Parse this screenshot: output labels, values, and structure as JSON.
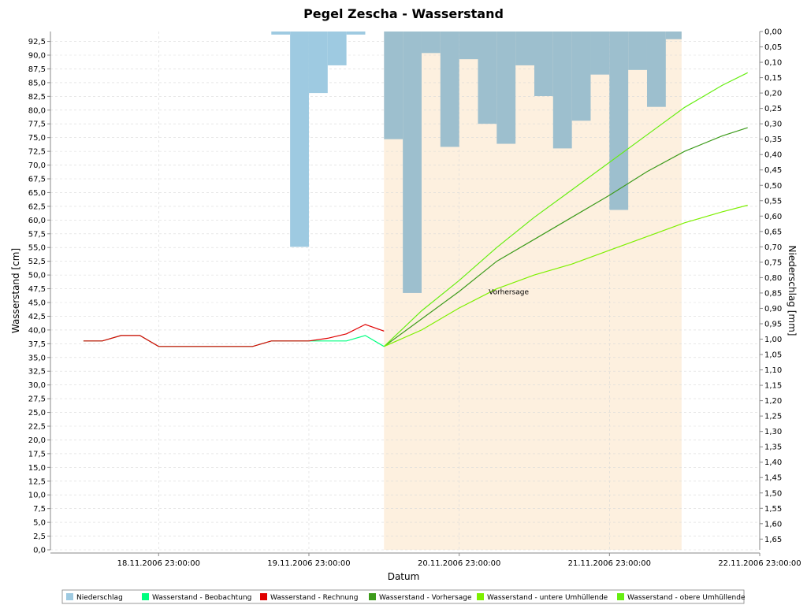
{
  "chart_data": {
    "type": "line",
    "title": "Pegel Zescha - Wasserstand",
    "xlabel": "Datum",
    "ylabel": "Wasserstand [cm]",
    "y2label": "Niederschlag [mm]",
    "xlim": [
      -2.22,
      2.5
    ],
    "x_ticks": [
      {
        "value": -1.5,
        "label": "18.11.2006 23:00:00"
      },
      {
        "value": -0.5,
        "label": "19.11.2006 23:00:00"
      },
      {
        "value": 0.5,
        "label": "20.11.2006 23:00:00"
      },
      {
        "value": 1.5,
        "label": "21.11.2006 23:00:00"
      },
      {
        "value": 2.5,
        "label": "22.11.2006 23:00:00"
      }
    ],
    "ylim": [
      0,
      94.3
    ],
    "y_ticks": [
      "0,0",
      "2,5",
      "5,0",
      "7,5",
      "10,0",
      "12,5",
      "15,0",
      "17,5",
      "20,0",
      "22,5",
      "25,0",
      "27,5",
      "30,0",
      "32,5",
      "35,0",
      "37,5",
      "40,0",
      "42,5",
      "45,0",
      "47,5",
      "50,0",
      "52,5",
      "55,0",
      "57,5",
      "60,0",
      "62,5",
      "65,0",
      "67,5",
      "70,0",
      "72,5",
      "75,0",
      "77,5",
      "80,0",
      "82,5",
      "85,0",
      "87,5",
      "90,0",
      "92,5"
    ],
    "y2lim": [
      0,
      1.685
    ],
    "y2_ticks": [
      "0,00",
      "0,05",
      "0,10",
      "0,15",
      "0,20",
      "0,25",
      "0,30",
      "0,35",
      "0,40",
      "0,45",
      "0,50",
      "0,55",
      "0,60",
      "0,65",
      "0,70",
      "0,75",
      "0,80",
      "0,85",
      "0,90",
      "0,95",
      "1,00",
      "1,05",
      "1,10",
      "1,15",
      "1,20",
      "1,25",
      "1,30",
      "1,35",
      "1,40",
      "1,45",
      "1,50",
      "1,55",
      "1,60",
      "1,65"
    ],
    "forecast_region": {
      "start": 0,
      "end": 1.98,
      "label": "Vorhersage"
    },
    "grid": true,
    "legend_position": "bottom",
    "precipitation": {
      "name": "Niederschlag",
      "color": "#9ecae1",
      "color_in_forecast": "#9dbfce",
      "bars": [
        {
          "start": -0.75,
          "end": -0.625,
          "value": 0.01
        },
        {
          "start": -0.625,
          "end": -0.5,
          "value": 0.7
        },
        {
          "start": -0.5,
          "end": -0.375,
          "value": 0.2
        },
        {
          "start": -0.375,
          "end": -0.25,
          "value": 0.11
        },
        {
          "start": -0.25,
          "end": -0.125,
          "value": 0.01
        },
        {
          "start": 0,
          "end": 0.125,
          "value": 0.35
        },
        {
          "start": 0.125,
          "end": 0.25,
          "value": 0.85
        },
        {
          "start": 0.25,
          "end": 0.375,
          "value": 0.07
        },
        {
          "start": 0.375,
          "end": 0.5,
          "value": 0.375
        },
        {
          "start": 0.5,
          "end": 0.625,
          "value": 0.09
        },
        {
          "start": 0.625,
          "end": 0.75,
          "value": 0.3
        },
        {
          "start": 0.75,
          "end": 0.875,
          "value": 0.365
        },
        {
          "start": 0.875,
          "end": 1.0,
          "value": 0.11
        },
        {
          "start": 1.0,
          "end": 1.125,
          "value": 0.21
        },
        {
          "start": 1.125,
          "end": 1.25,
          "value": 0.38
        },
        {
          "start": 1.25,
          "end": 1.375,
          "value": 0.29
        },
        {
          "start": 1.375,
          "end": 1.5,
          "value": 0.14
        },
        {
          "start": 1.5,
          "end": 1.625,
          "value": 0.58
        },
        {
          "start": 1.625,
          "end": 1.75,
          "value": 0.125
        },
        {
          "start": 1.75,
          "end": 1.875,
          "value": 0.245
        },
        {
          "start": 1.875,
          "end": 1.98,
          "value": 0.025
        }
      ]
    },
    "series": [
      {
        "name": "Wasserstand - Beobachtung",
        "color": "#00ff80",
        "x": [
          -2.0,
          -1.875,
          -1.75,
          -1.625,
          -1.5,
          -1.375,
          -1.25,
          -1.125,
          -1.0,
          -0.875,
          -0.75,
          -0.625,
          -0.5,
          -0.375,
          -0.25,
          -0.125,
          0
        ],
        "y": [
          38,
          38,
          39,
          39,
          37,
          37,
          37,
          37,
          37,
          37,
          38,
          38,
          38,
          38,
          38,
          39,
          37
        ]
      },
      {
        "name": "Wasserstand - Rechnung",
        "color": "#e00000",
        "x": [
          -2.0,
          -1.875,
          -1.75,
          -1.625,
          -1.5,
          -1.375,
          -1.25,
          -1.125,
          -1.0,
          -0.875,
          -0.75,
          -0.625,
          -0.5,
          -0.375,
          -0.25,
          -0.125,
          0
        ],
        "y": [
          38,
          38,
          39,
          39,
          37,
          37,
          37,
          37,
          37,
          37,
          38,
          38,
          38,
          38.5,
          39.3,
          41,
          39.8
        ]
      },
      {
        "name": "Wasserstand - Vorhersage",
        "color": "#3d9b1b",
        "x": [
          0,
          0.25,
          0.5,
          0.75,
          1.0,
          1.25,
          1.5,
          1.75,
          2.0,
          2.25,
          2.42
        ],
        "y": [
          37,
          42,
          47,
          52.5,
          56.5,
          60.5,
          64.5,
          68.8,
          72.5,
          75.3,
          76.8
        ]
      },
      {
        "name": "Wasserstand - untere Umhüllende",
        "color": "#7df000",
        "x": [
          0,
          0.25,
          0.5,
          0.75,
          1.0,
          1.25,
          1.5,
          1.75,
          2.0,
          2.25,
          2.42
        ],
        "y": [
          37,
          40,
          44,
          47.5,
          50,
          52,
          54.5,
          57,
          59.5,
          61.5,
          62.7
        ]
      },
      {
        "name": "Wasserstand - obere Umhüllende",
        "color": "#66ee11",
        "x": [
          0,
          0.25,
          0.5,
          0.75,
          1.0,
          1.25,
          1.5,
          1.75,
          2.0,
          2.25,
          2.42
        ],
        "y": [
          37,
          43.5,
          49,
          55,
          60.5,
          65.5,
          70.5,
          75.5,
          80.5,
          84.5,
          86.8
        ]
      }
    ],
    "legend_order": [
      "Niederschlag",
      "Wasserstand - Beobachtung",
      "Wasserstand - Rechnung",
      "Wasserstand - Vorhersage",
      "Wasserstand - untere Umhüllende",
      "Wasserstand - obere Umhüllende"
    ]
  }
}
